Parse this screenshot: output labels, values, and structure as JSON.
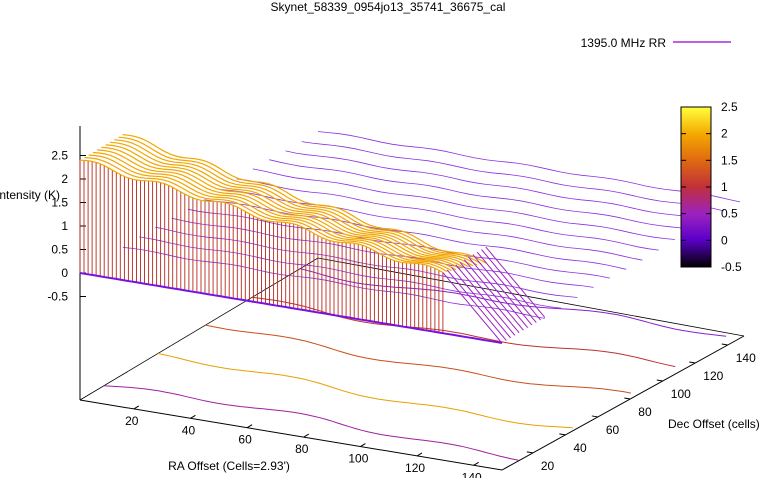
{
  "chart_data": {
    "type": "surface",
    "title": "Skynet_58339_0954jo13_35741_36675_cal",
    "xlabel": "RA Offset (Cells=2.93')",
    "ylabel": "Dec Offset (cells)",
    "zlabel": "Intensity (K)",
    "x_ticks": [
      "20",
      "40",
      "60",
      "80",
      "100",
      "120",
      "140"
    ],
    "y_ticks": [
      "20",
      "40",
      "60",
      "80",
      "100",
      "120",
      "140"
    ],
    "z_ticks": [
      "-0.5",
      "0",
      "0.5",
      "1",
      "1.5",
      "2",
      "2.5"
    ],
    "xlim": [
      1,
      150
    ],
    "ylim": [
      1,
      150
    ],
    "zlim": [
      -0.5,
      2.5
    ],
    "legend": {
      "position": "top-right",
      "entries": [
        {
          "name": "1395.0 MHz RR",
          "color": "#9400d3"
        }
      ]
    },
    "colorbar": {
      "ticks": [
        "2.5",
        "2",
        "1.5",
        "1",
        "0.5",
        "0",
        "-0.5"
      ],
      "range": [
        -0.5,
        2.5
      ],
      "colors": [
        "#000000",
        "#6a00d0",
        "#9b22c0",
        "#c0303a",
        "#e06a10",
        "#f4a800",
        "#ffff3c"
      ]
    },
    "surface": {
      "description_values": {
        "ridge_intensity_near_ra_1": 2.4,
        "ridge_intensity_near_ra_150": 1.0,
        "baseline_intensity": 0.0
      }
    }
  }
}
